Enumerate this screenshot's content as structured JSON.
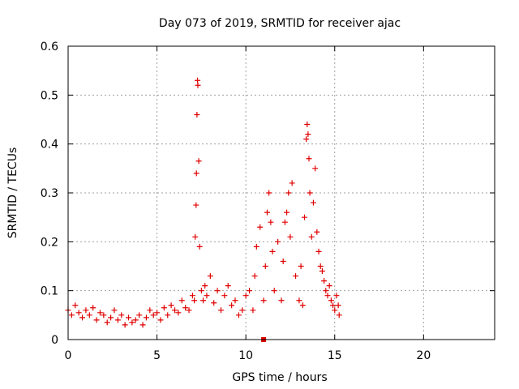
{
  "chart_data": {
    "type": "scatter",
    "title": "Day 073 of 2019, SRMTID for receiver ajac",
    "xlabel": "GPS time / hours",
    "ylabel": "SRMTID / TECUs",
    "xlim": [
      0,
      24
    ],
    "ylim": [
      0,
      0.6
    ],
    "xticks": [
      0,
      5,
      10,
      15,
      20
    ],
    "yticks": [
      0,
      0.1,
      0.2,
      0.3,
      0.4,
      0.5,
      0.6
    ],
    "grid": true,
    "marker": "plus",
    "color": "#e00000",
    "series": [
      {
        "name": "SRMTID",
        "x": [
          0.0,
          0.2,
          0.4,
          0.6,
          0.8,
          1.0,
          1.2,
          1.4,
          1.6,
          1.8,
          2.0,
          2.2,
          2.4,
          2.6,
          2.8,
          3.0,
          3.2,
          3.4,
          3.6,
          3.8,
          4.0,
          4.2,
          4.4,
          4.6,
          4.8,
          5.0,
          5.2,
          5.4,
          5.6,
          5.8,
          6.0,
          6.2,
          6.4,
          6.6,
          6.8,
          7.0,
          7.1,
          7.15,
          7.2,
          7.22,
          7.25,
          7.28,
          7.3,
          7.35,
          7.4,
          7.5,
          7.6,
          7.7,
          7.8,
          8.0,
          8.2,
          8.4,
          8.6,
          8.8,
          9.0,
          9.2,
          9.4,
          9.6,
          9.8,
          10.0,
          10.2,
          10.4,
          10.5,
          10.6,
          10.8,
          11.0,
          11.1,
          11.2,
          11.3,
          11.4,
          11.5,
          11.6,
          11.8,
          12.0,
          12.1,
          12.2,
          12.3,
          12.4,
          12.5,
          12.6,
          12.8,
          13.0,
          13.1,
          13.2,
          13.3,
          13.4,
          13.45,
          13.5,
          13.55,
          13.6,
          13.7,
          13.8,
          13.9,
          14.0,
          14.1,
          14.2,
          14.3,
          14.4,
          14.5,
          14.6,
          14.7,
          14.8,
          14.9,
          15.0,
          15.1,
          15.2,
          15.25
        ],
        "y": [
          0.06,
          0.05,
          0.07,
          0.055,
          0.045,
          0.06,
          0.05,
          0.065,
          0.04,
          0.055,
          0.05,
          0.035,
          0.045,
          0.06,
          0.04,
          0.05,
          0.03,
          0.045,
          0.035,
          0.04,
          0.05,
          0.03,
          0.045,
          0.06,
          0.05,
          0.055,
          0.04,
          0.065,
          0.05,
          0.07,
          0.06,
          0.055,
          0.08,
          0.065,
          0.06,
          0.09,
          0.08,
          0.21,
          0.275,
          0.34,
          0.46,
          0.53,
          0.52,
          0.365,
          0.19,
          0.1,
          0.08,
          0.11,
          0.09,
          0.13,
          0.075,
          0.1,
          0.06,
          0.09,
          0.11,
          0.07,
          0.08,
          0.05,
          0.06,
          0.09,
          0.1,
          0.06,
          0.13,
          0.19,
          0.23,
          0.08,
          0.15,
          0.26,
          0.3,
          0.24,
          0.18,
          0.1,
          0.2,
          0.08,
          0.16,
          0.24,
          0.26,
          0.3,
          0.21,
          0.32,
          0.13,
          0.08,
          0.15,
          0.07,
          0.25,
          0.41,
          0.44,
          0.42,
          0.37,
          0.3,
          0.21,
          0.28,
          0.35,
          0.22,
          0.18,
          0.15,
          0.14,
          0.12,
          0.1,
          0.09,
          0.11,
          0.08,
          0.07,
          0.06,
          0.09,
          0.07,
          0.05
        ]
      }
    ],
    "extra_marker": {
      "x": 11.0,
      "y": 0.0,
      "shape": "square"
    }
  }
}
